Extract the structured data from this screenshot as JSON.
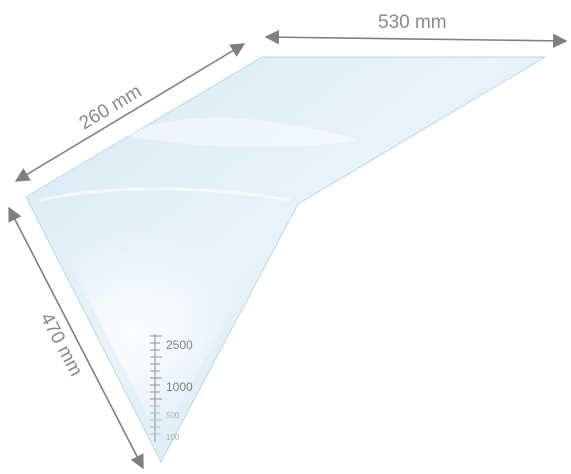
{
  "diagram": {
    "type": "piping-bag-dimensions",
    "dimensions": {
      "top": "530 mm",
      "diagonal": "260 mm",
      "side": "470 mm"
    },
    "scale_marks": [
      "2500",
      "1000",
      "500",
      "100"
    ],
    "colors": {
      "bag_fill": "#cfe5f1",
      "bag_edge": "#b9d7e8",
      "arrow": "#7f7f7f",
      "text": "#8a8a8a"
    }
  }
}
